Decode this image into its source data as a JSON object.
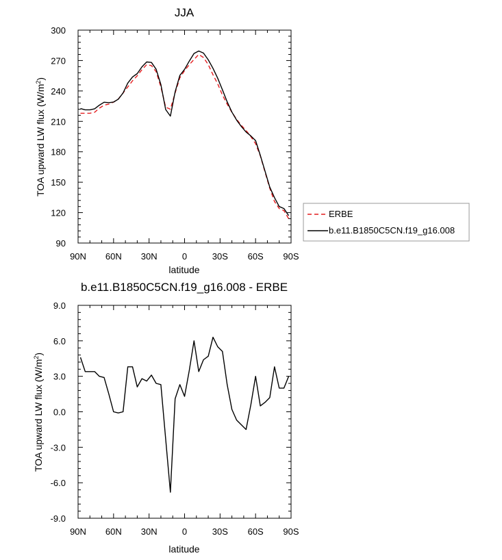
{
  "chart_data": [
    {
      "type": "line",
      "title": "JJA",
      "xlabel": "latitude",
      "ylabel": "TOA upward LW flux (W/m",
      "ylabel_sup": "2",
      "ylabel_close": ")",
      "xlim": [
        90,
        -90
      ],
      "ylim": [
        90,
        300
      ],
      "x_ticks": [
        90,
        60,
        30,
        0,
        -30,
        -60,
        -90
      ],
      "x_tick_labels": [
        "90N",
        "60N",
        "30N",
        "0",
        "30S",
        "60S",
        "90S"
      ],
      "y_ticks": [
        90,
        120,
        150,
        180,
        210,
        240,
        270,
        300
      ],
      "y_tick_labels": [
        "90",
        "120",
        "150",
        "180",
        "210",
        "240",
        "270",
        "300"
      ],
      "legend_placement": "right-outside",
      "series": [
        {
          "name": "ERBE",
          "color": "#e41a1c",
          "dash": "dashed",
          "x": [
            88,
            84,
            80,
            76,
            72,
            68,
            64,
            60,
            56,
            52,
            48,
            44,
            40,
            36,
            32,
            28,
            24,
            20,
            16,
            12,
            8,
            4,
            0,
            -4,
            -8,
            -12,
            -16,
            -20,
            -24,
            -28,
            -32,
            -36,
            -40,
            -44,
            -48,
            -52,
            -56,
            -60,
            -64,
            -68,
            -72,
            -76,
            -80,
            -84,
            -88
          ],
          "values": [
            218,
            218,
            218,
            219,
            223,
            226,
            227,
            229,
            232,
            238,
            244,
            250,
            255,
            261,
            266,
            265,
            259,
            244,
            224,
            222,
            238,
            253,
            260,
            266,
            271,
            276,
            273,
            266,
            256,
            247,
            236,
            227,
            219,
            212,
            206,
            201,
            195,
            188,
            176,
            160,
            144,
            131,
            124,
            122,
            114
          ]
        },
        {
          "name": "b.e11.B1850C5CN.f19_g16.008",
          "color": "#000000",
          "dash": "solid",
          "x": [
            88,
            84,
            80,
            76,
            72,
            68,
            64,
            60,
            56,
            52,
            48,
            44,
            40,
            36,
            32,
            28,
            24,
            20,
            16,
            12,
            8,
            4,
            0,
            -4,
            -8,
            -12,
            -16,
            -20,
            -24,
            -28,
            -32,
            -36,
            -40,
            -44,
            -48,
            -52,
            -56,
            -60,
            -64,
            -68,
            -72,
            -76,
            -80,
            -84,
            -88
          ],
          "values": [
            222.6,
            221.4,
            221.4,
            222.4,
            226.0,
            228.9,
            228.5,
            229.0,
            231.9,
            238.0,
            247.8,
            253.8,
            257.1,
            263.8,
            268.6,
            268.1,
            261.4,
            246.3,
            221.7,
            215.2,
            239.1,
            255.3,
            261.3,
            269.5,
            277.0,
            279.4,
            277.4,
            270.7,
            262.3,
            252.5,
            241.1,
            229.3,
            219.2,
            211.3,
            204.9,
            199.5,
            195.6,
            191.0,
            176.5,
            160.8,
            145.2,
            134.8,
            126.0,
            124.0,
            117.0
          ]
        }
      ]
    },
    {
      "type": "line",
      "title": "b.e11.B1850C5CN.f19_g16.008 - ERBE",
      "xlabel": "latitude",
      "ylabel": "TOA upward LW flux (W/m",
      "ylabel_sup": "2",
      "ylabel_close": ")",
      "xlim": [
        90,
        -90
      ],
      "ylim": [
        -9,
        9
      ],
      "x_ticks": [
        90,
        60,
        30,
        0,
        -30,
        -60,
        -90
      ],
      "x_tick_labels": [
        "90N",
        "60N",
        "30N",
        "0",
        "30S",
        "60S",
        "90S"
      ],
      "y_ticks": [
        -9,
        -6,
        -3,
        0,
        3,
        6,
        9
      ],
      "y_tick_labels": [
        "-9.0",
        "-6.0",
        "-3.0",
        "0.0",
        "3.0",
        "6.0",
        "9.0"
      ],
      "series": [
        {
          "color": "#000000",
          "dash": "solid",
          "x": [
            88,
            84,
            80,
            76,
            72,
            68,
            64,
            60,
            56,
            52,
            48,
            44,
            40,
            36,
            32,
            28,
            24,
            20,
            16,
            12,
            8,
            4,
            0,
            -4,
            -8,
            -12,
            -16,
            -20,
            -24,
            -28,
            -32,
            -36,
            -40,
            -44,
            -48,
            -52,
            -56,
            -60,
            -64,
            -68,
            -72,
            -76,
            -80,
            -84,
            -88
          ],
          "values": [
            4.6,
            3.4,
            3.4,
            3.4,
            3.0,
            2.9,
            1.5,
            0.0,
            -0.1,
            0.0,
            3.8,
            3.8,
            2.1,
            2.8,
            2.6,
            3.1,
            2.4,
            2.3,
            -2.3,
            -6.8,
            1.1,
            2.3,
            1.3,
            3.5,
            6.0,
            3.4,
            4.4,
            4.7,
            6.3,
            5.5,
            5.1,
            2.3,
            0.2,
            -0.7,
            -1.1,
            -1.5,
            0.6,
            3.0,
            0.5,
            0.8,
            1.2,
            3.8,
            2.0,
            2.0,
            3.0
          ]
        }
      ]
    }
  ]
}
